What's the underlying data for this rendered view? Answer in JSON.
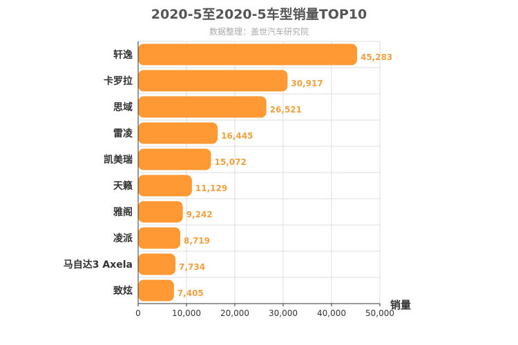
{
  "chart_data": {
    "type": "bar",
    "orientation": "horizontal",
    "title": "2020-5至2020-5车型销量TOP10",
    "subtitle": "数据整理：盖世汽车研究院",
    "xlabel": "销量",
    "categories": [
      "轩逸",
      "卡罗拉",
      "思域",
      "雷凌",
      "凯美瑞",
      "天籁",
      "雅阁",
      "凌派",
      "马自达3 Axela",
      "致炫"
    ],
    "values": [
      45283,
      30917,
      26521,
      16445,
      15072,
      11129,
      9242,
      8719,
      7734,
      7405
    ],
    "value_labels": [
      "45,283",
      "30,917",
      "26,521",
      "16,445",
      "15,072",
      "11,129",
      "9,242",
      "8,719",
      "7,734",
      "7,405"
    ],
    "xlim": [
      0,
      50000
    ],
    "x_ticks": [
      0,
      10000,
      20000,
      30000,
      40000,
      50000
    ],
    "x_tick_labels": [
      "0",
      "10,000",
      "20,000",
      "30,000",
      "40,000",
      "50,000"
    ],
    "grid": true,
    "bar_color": "#ff9933",
    "label_color": "#f0a040"
  }
}
